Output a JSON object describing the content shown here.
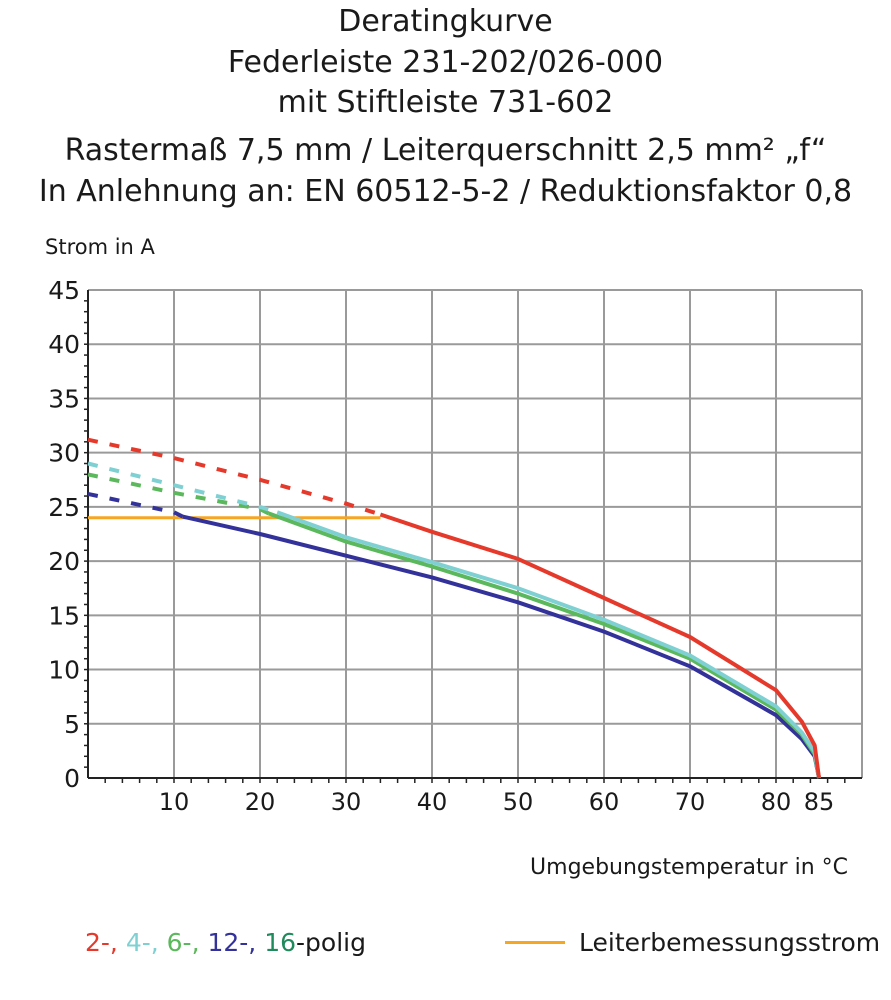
{
  "chart_data": {
    "type": "line",
    "title": [
      "Deratingkurve",
      "Federleiste 231-202/026-000",
      "mit Stiftleiste 731-602",
      "Rastermaß 7,5 mm / Leiterquerschnitt 2,5 mm² „f“",
      "In Anlehnung an: EN 60512-5-2 / Reduktionsfaktor 0,8"
    ],
    "ylabel": "Strom in A",
    "xlabel": "Umgebungstemperatur in °C",
    "xlim": [
      0,
      90
    ],
    "ylim": [
      0,
      45
    ],
    "xticks": [
      10,
      20,
      30,
      40,
      50,
      60,
      70,
      80,
      85
    ],
    "yticks": [
      0,
      5,
      10,
      15,
      20,
      25,
      30,
      35,
      40,
      45
    ],
    "grid": true,
    "series": [
      {
        "name": "2-",
        "color": "#e53a2b",
        "dashed_until": 34,
        "x": [
          0,
          10,
          20,
          30,
          34,
          40,
          50,
          60,
          70,
          80,
          83,
          84.5,
          85
        ],
        "y": [
          31.2,
          29.5,
          27.5,
          25.3,
          24.3,
          22.7,
          20.2,
          16.6,
          13,
          8.1,
          5.2,
          3,
          0
        ]
      },
      {
        "name": "4-",
        "color": "#7fd0d2",
        "dashed_until": 22,
        "x": [
          0,
          10,
          20,
          22,
          30,
          40,
          50,
          60,
          70,
          80,
          83,
          84.5,
          85
        ],
        "y": [
          29,
          27,
          25,
          24.5,
          22.2,
          19.9,
          17.5,
          14.6,
          11.3,
          6.6,
          4.2,
          2.4,
          0
        ]
      },
      {
        "name": "6-",
        "color": "#5cb85c",
        "dashed_until": 21,
        "x": [
          0,
          10,
          20,
          21,
          30,
          40,
          50,
          60,
          70,
          80,
          83,
          84.5,
          85
        ],
        "y": [
          28,
          26.3,
          24.8,
          24.4,
          21.8,
          19.5,
          17,
          14.2,
          11,
          6.3,
          4,
          2.2,
          0
        ]
      },
      {
        "name": "12-",
        "color": "#33329a",
        "dashed_until": 11,
        "x": [
          0,
          10,
          11,
          20,
          30,
          40,
          50,
          60,
          70,
          80,
          83,
          84.5,
          85
        ],
        "y": [
          26.2,
          24.5,
          24.1,
          22.5,
          20.5,
          18.5,
          16.2,
          13.5,
          10.3,
          5.8,
          3.6,
          2,
          0
        ]
      },
      {
        "name": "Leiterbemessungsstrom",
        "color": "#f5a623",
        "dashed_until": 0,
        "x": [
          0,
          34
        ],
        "y": [
          24,
          24
        ]
      }
    ],
    "legend": {
      "placement": "bottom",
      "poles": [
        {
          "text": "2-,",
          "color": "#e53a2b"
        },
        {
          "text": " 4-,",
          "color": "#7fd0d2"
        },
        {
          "text": " 6-,",
          "color": "#5cb85c"
        },
        {
          "text": " 12-,",
          "color": "#33329a"
        },
        {
          "text": " 16",
          "color": "#1f8a5b"
        },
        {
          "text": "-polig",
          "color": "#1a1a1a"
        }
      ],
      "rated_current": "Leiterbemessungsstrom"
    }
  }
}
